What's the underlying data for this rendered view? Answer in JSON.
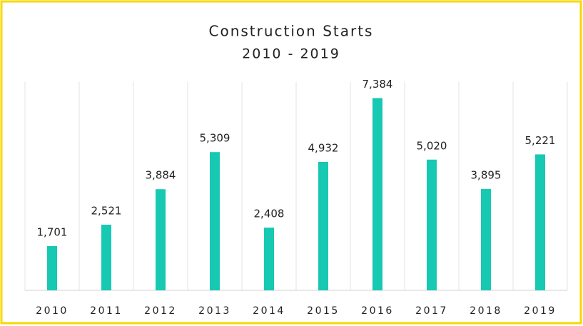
{
  "chart_data": {
    "type": "bar",
    "title": "Construction Starts",
    "subtitle": "2010 - 2019",
    "categories": [
      "2010",
      "2011",
      "2012",
      "2013",
      "2014",
      "2015",
      "2016",
      "2017",
      "2018",
      "2019"
    ],
    "values": [
      1701,
      2521,
      3884,
      5309,
      2408,
      4932,
      7384,
      5020,
      3895,
      5221
    ],
    "value_labels": [
      "1,701",
      "2,521",
      "3,884",
      "5,309",
      "2,408",
      "4,932",
      "7,384",
      "5,020",
      "3,895",
      "5,221"
    ],
    "color": "#17c9b2",
    "ylim": [
      0,
      8000
    ],
    "grid": true
  }
}
